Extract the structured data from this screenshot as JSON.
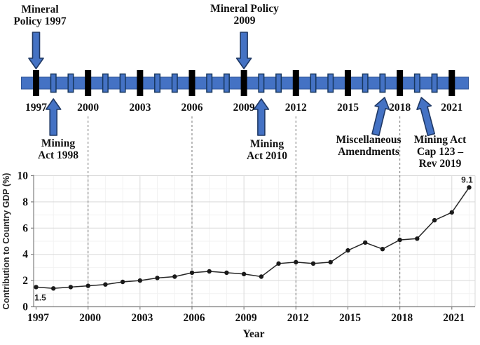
{
  "figure": {
    "background": "#ffffff"
  },
  "timeline": {
    "start_year": 1997,
    "end_year": 2021,
    "major_interval": 3,
    "year_labels": [
      "1997",
      "2000",
      "2003",
      "2006",
      "2009",
      "2012",
      "2015",
      "2018",
      "2021"
    ],
    "dashed_years": [
      2000,
      2006,
      2012,
      2018
    ],
    "events": [
      {
        "id": "mineral-policy-1997",
        "label": "Mineral\nPolicy 1997",
        "year": 1997,
        "arrow": "down"
      },
      {
        "id": "mining-act-1998",
        "label": "Mining\nAct 1998",
        "year": 1998,
        "arrow": "up"
      },
      {
        "id": "mineral-policy-2009",
        "label": "Mineral Policy\n2009",
        "year": 2009,
        "arrow": "down"
      },
      {
        "id": "mining-act-2010",
        "label": "Mining\nAct 2010",
        "year": 2010,
        "arrow": "up"
      },
      {
        "id": "miscellaneous-amendments",
        "label": "Miscellaneous\nAmendments",
        "year": 2017,
        "arrow": "up-slant-right"
      },
      {
        "id": "mining-act-cap-123",
        "label": "Mining Act\nCap 123 –\nRev 2019",
        "year": 2019,
        "arrow": "up-slant-left"
      }
    ],
    "colors": {
      "bar_fill": "#4472C4",
      "bar_border": "#2F5597",
      "blue_tick_fill": "#4472C4",
      "blue_tick_border": "#17375E",
      "black_tick": "#000000",
      "arrow_fill": "#4472C4",
      "arrow_border": "#1F3864",
      "dashed_line": "#808080"
    }
  },
  "chart_data": {
    "type": "line",
    "x": [
      1997,
      1998,
      1999,
      2000,
      2001,
      2002,
      2003,
      2004,
      2005,
      2006,
      2007,
      2008,
      2009,
      2010,
      2011,
      2012,
      2013,
      2014,
      2015,
      2016,
      2017,
      2018,
      2019,
      2020,
      2021,
      2022
    ],
    "values": [
      1.5,
      1.4,
      1.5,
      1.6,
      1.7,
      1.9,
      2.0,
      2.2,
      2.3,
      2.6,
      2.7,
      2.6,
      2.5,
      2.3,
      3.3,
      3.4,
      3.3,
      3.4,
      4.3,
      4.9,
      4.4,
      5.1,
      5.2,
      6.6,
      7.2,
      9.1
    ],
    "title": "",
    "xlabel": "Year",
    "ylabel": "Contribution to Country GDP (%)",
    "ylim": [
      0,
      10
    ],
    "yticks": [
      0,
      2,
      4,
      6,
      8,
      10
    ],
    "xtick_years": [
      1997,
      2000,
      2003,
      2006,
      2009,
      2012,
      2015,
      2018,
      2021
    ],
    "first_point_label": "1.5",
    "last_point_label": "9.1",
    "grid": "minor and major, light gray",
    "legend": "none",
    "line_color": "#262626",
    "marker": "filled-circle",
    "axis_color": "#808080",
    "grid_major_color": "#d9d9d9",
    "grid_minor_color": "#f2f2f2"
  }
}
